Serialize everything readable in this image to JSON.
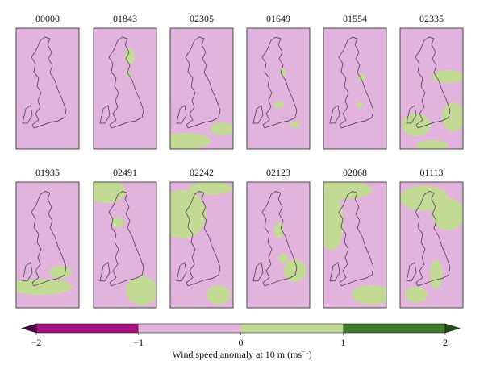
{
  "panels": [
    {
      "title": "00000"
    },
    {
      "title": "01843"
    },
    {
      "title": "02305"
    },
    {
      "title": "01649"
    },
    {
      "title": "01554"
    },
    {
      "title": "02335"
    },
    {
      "title": "01935"
    },
    {
      "title": "02491"
    },
    {
      "title": "02242"
    },
    {
      "title": "02123"
    },
    {
      "title": "02868"
    },
    {
      "title": "01113"
    }
  ],
  "colorbar": {
    "label": "Wind speed anomaly at 10 m (ms",
    "label_sup": "−1",
    "label_end": ")",
    "lim": [
      -2,
      2
    ],
    "ticks": [
      {
        "value": -2,
        "label": "−2"
      },
      {
        "value": -1,
        "label": "−1"
      },
      0,
      1,
      2
    ],
    "bins": [
      -2,
      -1,
      0,
      1,
      2
    ],
    "colors": [
      "#a3127d",
      "#e2b3dc",
      "#c3da94",
      "#3f7b2c"
    ],
    "extend_colors": [
      "#4f0048",
      "#254d19"
    ]
  }
}
